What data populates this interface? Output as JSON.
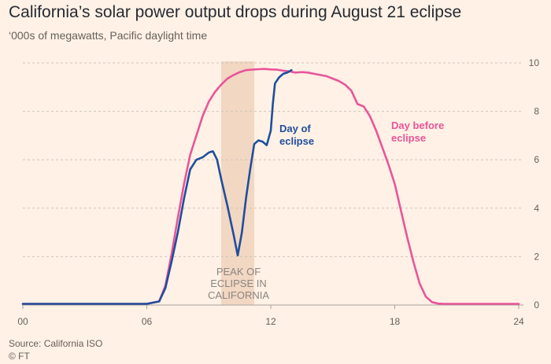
{
  "title": "California’s solar power output drops during August 21 eclipse",
  "subtitle": "‘000s of megawatts, Pacific daylight time",
  "source": "Source: California ISO",
  "credit": "© FT",
  "colors": {
    "background": "#FFF1E5",
    "day_of": "#1F4E9C",
    "day_before": "#E8559A",
    "shade": "#F2D7C3",
    "grid": "#CEC6B9",
    "text": "#33302E",
    "muted": "#66605C"
  },
  "chart_data": {
    "type": "line",
    "xlabel": "",
    "ylabel": "",
    "xlim": [
      0,
      24
    ],
    "ylim": [
      0,
      10
    ],
    "x_ticks": [
      0,
      6,
      12,
      18,
      24
    ],
    "x_tick_labels": [
      "00",
      "06",
      "12",
      "18",
      "24"
    ],
    "y_ticks": [
      0,
      2,
      4,
      6,
      8,
      10
    ],
    "y_tick_labels": [
      "0",
      "2",
      "4",
      "6",
      "8",
      "10"
    ],
    "y_axis_side": "right",
    "grid": true,
    "shaded_region": {
      "x_range": [
        9.6,
        11.2
      ],
      "label": [
        "PEAK OF",
        "ECLIPSE IN",
        "CALIFORNIA"
      ]
    },
    "series": [
      {
        "name": "Day before eclipse",
        "label_lines": [
          "Day before",
          "eclipse"
        ],
        "x": [
          0,
          2,
          4,
          6,
          6.6,
          6.9,
          7.2,
          7.5,
          7.8,
          8.1,
          8.4,
          8.7,
          9.0,
          9.3,
          9.6,
          9.9,
          10.2,
          10.5,
          10.8,
          11.1,
          11.4,
          11.7,
          12.0,
          12.3,
          12.6,
          12.9,
          13.2,
          13.5,
          13.8,
          14.1,
          14.4,
          14.7,
          15.0,
          15.3,
          15.6,
          15.9,
          16.2,
          16.5,
          16.8,
          17.1,
          17.4,
          17.7,
          18.0,
          18.3,
          18.6,
          18.9,
          19.2,
          19.5,
          19.8,
          20.1,
          20.4,
          21,
          22,
          24
        ],
        "y": [
          0.05,
          0.05,
          0.05,
          0.05,
          0.15,
          0.8,
          2.1,
          3.6,
          5.0,
          6.2,
          7.0,
          7.8,
          8.4,
          8.8,
          9.1,
          9.35,
          9.5,
          9.62,
          9.7,
          9.72,
          9.74,
          9.75,
          9.73,
          9.72,
          9.68,
          9.65,
          9.6,
          9.62,
          9.6,
          9.55,
          9.5,
          9.45,
          9.35,
          9.25,
          9.1,
          8.85,
          8.3,
          8.2,
          7.8,
          7.2,
          6.5,
          5.8,
          5.0,
          3.9,
          2.8,
          1.8,
          0.9,
          0.35,
          0.12,
          0.06,
          0.05,
          0.05,
          0.05,
          0.05
        ]
      },
      {
        "name": "Day of eclipse",
        "label_lines": [
          "Day of",
          "eclipse"
        ],
        "x": [
          0,
          2,
          4,
          6,
          6.6,
          6.9,
          7.2,
          7.5,
          7.8,
          8.1,
          8.4,
          8.7,
          9.0,
          9.2,
          9.4,
          9.6,
          9.9,
          10.2,
          10.4,
          10.6,
          10.8,
          11.0,
          11.2,
          11.4,
          11.6,
          11.8,
          12.0,
          12.1,
          12.2,
          12.4,
          12.6,
          12.8,
          13.0
        ],
        "y": [
          0.05,
          0.05,
          0.05,
          0.05,
          0.15,
          0.7,
          1.8,
          3.0,
          4.4,
          5.6,
          6.0,
          6.1,
          6.3,
          6.35,
          6.0,
          5.2,
          4.1,
          2.9,
          2.05,
          3.0,
          4.4,
          5.6,
          6.65,
          6.8,
          6.75,
          6.6,
          7.2,
          8.3,
          9.15,
          9.4,
          9.55,
          9.6,
          9.7
        ]
      }
    ]
  }
}
